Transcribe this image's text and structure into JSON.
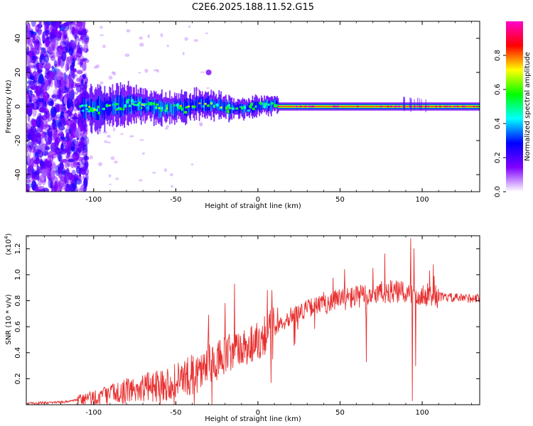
{
  "title": "C2E6.2025.188.11.52.G15",
  "chart_data": [
    {
      "type": "heatmap",
      "xlabel": "Height of straight line (km)",
      "ylabel": "Frequency (Hz)",
      "xlim": [
        -141,
        135
      ],
      "ylim": [
        -50,
        50
      ],
      "xticks": [
        "-100",
        "-50",
        "0",
        "50",
        "100"
      ],
      "xtick_values": [
        -100,
        -50,
        0,
        50,
        100
      ],
      "yticks": [
        "-40",
        "-20",
        "0",
        "20",
        "40"
      ],
      "ytick_values": [
        -40,
        -20,
        0,
        20,
        40
      ],
      "colorbar": {
        "label": "Normalized spectral amplitude",
        "range": [
          0,
          1
        ],
        "ticks": [
          "0.0",
          "0.2",
          "0.4",
          "0.6",
          "0.8"
        ],
        "tick_values": [
          0.0,
          0.2,
          0.4,
          0.6,
          0.8
        ],
        "colors": [
          "#ffffff",
          "#8000ff",
          "#0000ff",
          "#00ffff",
          "#00ff00",
          "#ffff00",
          "#ff0000",
          "#ff00cc"
        ]
      },
      "features": [
        {
          "x_range": [
            -141,
            -108
          ],
          "freq_range": [
            -50,
            50
          ],
          "amplitude": [
            0.1,
            0.3
          ],
          "description_color": "#8000ff"
        },
        {
          "x_range": [
            -108,
            12
          ],
          "center_freq": 0,
          "freq_width": 8,
          "amplitude": [
            0.3,
            0.8
          ]
        },
        {
          "x_range": [
            12,
            135
          ],
          "center_freq": 0,
          "freq_width": 2,
          "amplitude": [
            0.8,
            1.0
          ]
        }
      ]
    },
    {
      "type": "line",
      "xlabel": "Height of straight line (km)",
      "ylabel": "SNR (10 * v/v)",
      "scale_label": "(x10",
      "scale_exp": "4",
      "scale_close": ")",
      "xlim": [
        -141,
        135
      ],
      "ylim": [
        0,
        1.3
      ],
      "xticks": [
        "-100",
        "-50",
        "0",
        "50",
        "100"
      ],
      "xtick_values": [
        -100,
        -50,
        0,
        50,
        100
      ],
      "yticks": [
        "0.2",
        "0.4",
        "0.6",
        "0.8",
        "1.0",
        "1.2"
      ],
      "ytick_values": [
        0.2,
        0.4,
        0.6,
        0.8,
        1.0,
        1.2
      ],
      "color": "#e83030",
      "trend": {
        "x": [
          -141,
          -120,
          -105,
          -90,
          -75,
          -60,
          -50,
          -40,
          -30,
          -20,
          -10,
          0,
          10,
          20,
          30,
          40,
          50,
          60,
          70,
          80,
          90,
          100,
          110,
          120,
          135
        ],
        "y": [
          0.01,
          0.02,
          0.04,
          0.08,
          0.12,
          0.15,
          0.18,
          0.23,
          0.3,
          0.37,
          0.43,
          0.5,
          0.6,
          0.68,
          0.74,
          0.78,
          0.81,
          0.83,
          0.85,
          0.87,
          0.86,
          0.85,
          0.83,
          0.82,
          0.82
        ]
      }
    }
  ]
}
